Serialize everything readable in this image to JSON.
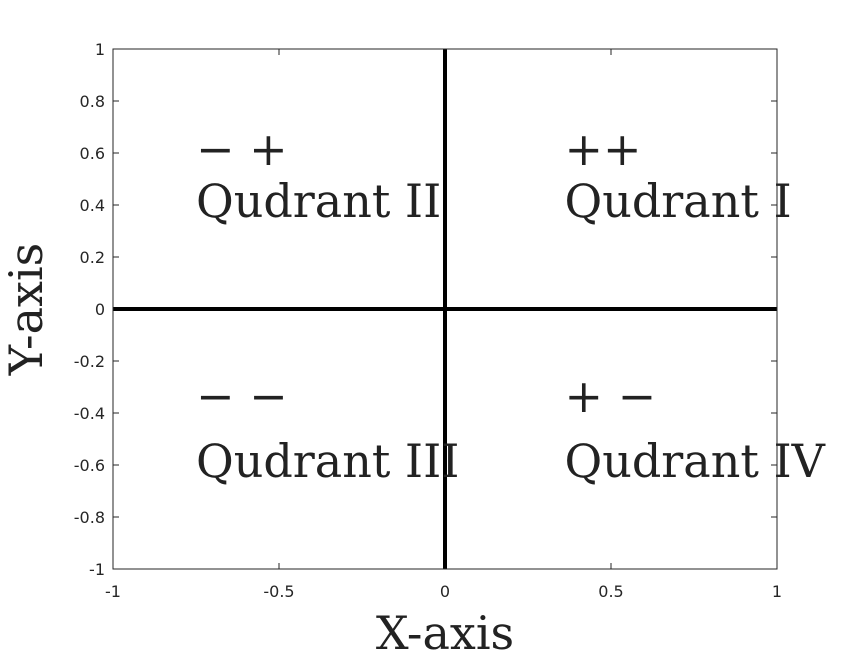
{
  "chart_data": {
    "type": "scatter",
    "title": "",
    "xlabel": "X-axis",
    "ylabel": "Y-axis",
    "xlim": [
      -1,
      1
    ],
    "ylim": [
      -1,
      1
    ],
    "xticks": [
      -1,
      -0.5,
      0,
      0.5,
      1
    ],
    "xtick_labels": [
      "-1",
      "-0.5",
      "0",
      "0.5",
      "1"
    ],
    "yticks": [
      1,
      0.8,
      0.6,
      0.4,
      0.2,
      0,
      -0.2,
      -0.4,
      -0.6,
      -0.8,
      -1
    ],
    "ytick_labels": [
      "1",
      "0.8",
      "0.6",
      "0.4",
      "0.2",
      "0",
      "-0.2",
      "-0.4",
      "-0.6",
      "-0.8",
      "-1"
    ],
    "grid": false,
    "reference_lines": [
      {
        "orientation": "horizontal",
        "value": 0
      },
      {
        "orientation": "vertical",
        "value": 0
      }
    ],
    "annotations": [
      {
        "text": "− +",
        "x": -0.75,
        "y": 0.6
      },
      {
        "text": "Qudrant II",
        "x": -0.75,
        "y": 0.4
      },
      {
        "text": "++",
        "x": 0.36,
        "y": 0.6
      },
      {
        "text": "Qudrant I",
        "x": 0.36,
        "y": 0.4
      },
      {
        "text": "− −",
        "x": -0.75,
        "y": -0.35
      },
      {
        "text": "Qudrant III",
        "x": -0.75,
        "y": -0.6
      },
      {
        "text": "+ −",
        "x": 0.36,
        "y": -0.35
      },
      {
        "text": "Qudrant IV",
        "x": 0.36,
        "y": -0.6
      }
    ]
  }
}
